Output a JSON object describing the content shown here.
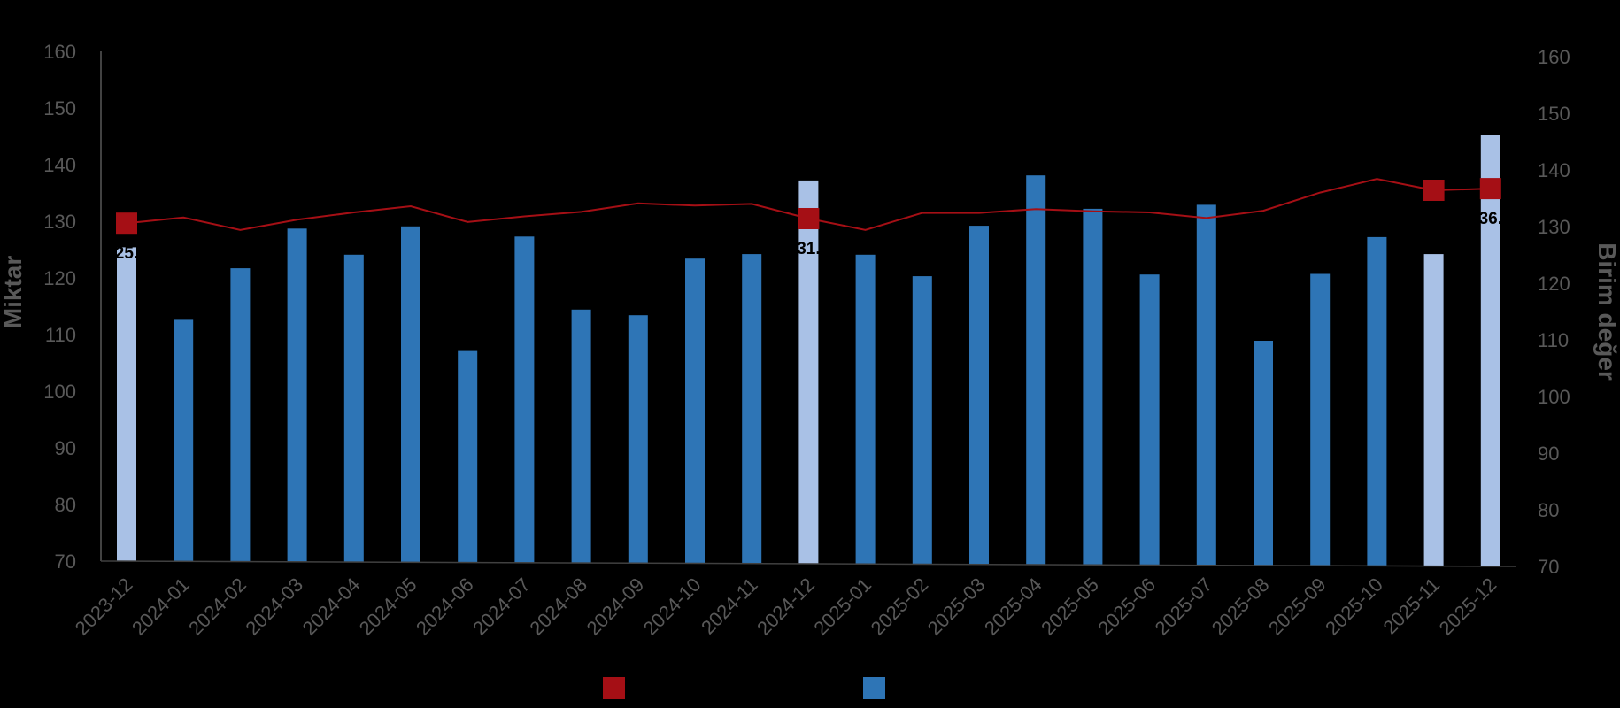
{
  "chart_data": {
    "type": "bar",
    "categories": [
      "2023-12",
      "2024-01",
      "2024-02",
      "2024-03",
      "2024-04",
      "2024-05",
      "2024-06",
      "2024-07",
      "2024-08",
      "2024-09",
      "2024-10",
      "2024-11",
      "2024-12",
      "2025-01",
      "2025-02",
      "2025-03",
      "2025-04",
      "2025-05",
      "2025-06",
      "2025-07",
      "2025-08",
      "2025-09",
      "2025-10",
      "2025-11",
      "2025-12"
    ],
    "ylabel": "Miktar",
    "y2label": "Birim değer",
    "ylim": [
      70,
      160
    ],
    "y2lim": [
      70,
      160
    ],
    "yticks": [
      "70",
      "80",
      "90",
      "100",
      "110",
      "120",
      "130",
      "140",
      "150",
      "160"
    ],
    "y2ticks": [
      "70",
      "80",
      "90",
      "100",
      "110",
      "120",
      "130",
      "140",
      "150",
      "160"
    ],
    "grid": false,
    "legend_position": "bottom",
    "series": [
      {
        "type": "bar",
        "axis": "left",
        "color": "#2E75B6",
        "highlight_color": "#A9C1E6",
        "highlight_indices": [
          0,
          12,
          23,
          24
        ],
        "values": [
          125.4,
          112.6,
          121.7,
          128.7,
          124.1,
          129.1,
          107.1,
          127.3,
          114.4,
          113.4,
          123.4,
          124.2,
          137.2,
          124.1,
          120.3,
          129.2,
          138.1,
          132.2,
          120.6,
          132.9,
          108.9,
          120.7,
          127.2,
          124.2,
          145.2
        ]
      },
      {
        "type": "line",
        "axis": "right",
        "color": "#A50F15",
        "marker_color": "#A50F15",
        "marker_indices": [
          0,
          12,
          23,
          24
        ],
        "values": [
          130.6,
          131.6,
          129.4,
          131.2,
          132.5,
          133.6,
          130.8,
          131.8,
          132.6,
          134.1,
          133.7,
          134.0,
          131.4,
          129.4,
          132.4,
          132.4,
          133.1,
          132.7,
          132.5,
          131.5,
          132.8,
          136.0,
          138.4,
          136.4,
          136.7
        ]
      }
    ],
    "data_labels": [
      {
        "index": 0,
        "text": "25."
      },
      {
        "index": 12,
        "text": "31."
      },
      {
        "index": 24,
        "text": "36."
      }
    ]
  },
  "colors": {
    "background": "#000000",
    "axis_text": "#595959",
    "axis_line": "#595959"
  }
}
